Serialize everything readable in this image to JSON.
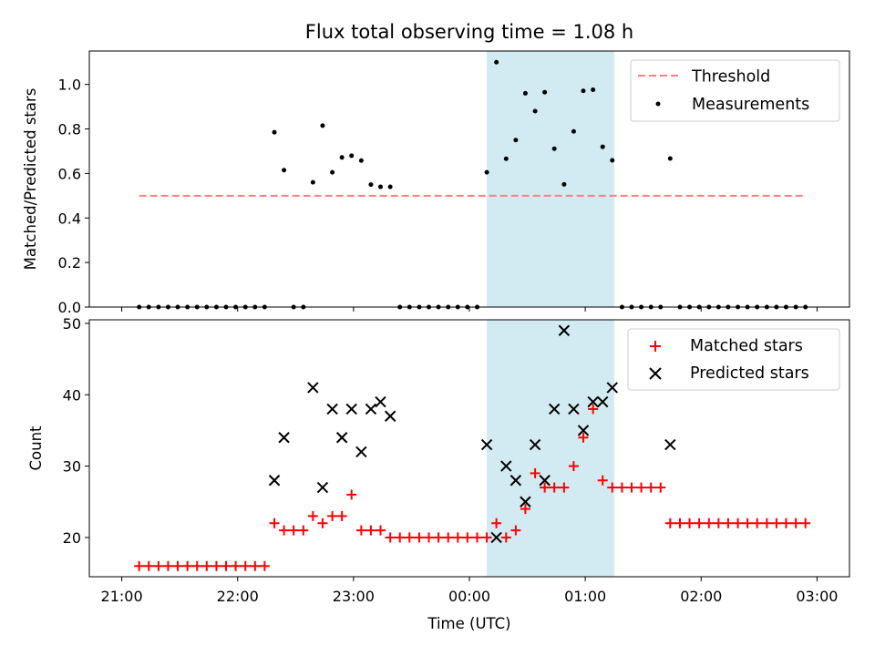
{
  "chart_data": [
    {
      "type": "scatter",
      "title": "Flux total observing time = 1.08 h",
      "xlabel": "",
      "ylabel": "Matched/Predicted stars",
      "ylim": [
        0,
        1.15
      ],
      "yticks": [
        "0.0",
        "0.2",
        "0.4",
        "0.6",
        "0.8",
        "1.0"
      ],
      "x_unit": "hours after 21:00 UTC",
      "xlim": [
        -0.28,
        6.28
      ],
      "shaded_interval": [
        3.15,
        4.25
      ],
      "shade_color": "#add8e6",
      "legend_placement": "upper right",
      "threshold": {
        "name": "Threshold",
        "value": 0.5,
        "x_range": [
          0.15,
          5.9
        ],
        "color": "#ff7f7f"
      },
      "series": [
        {
          "name": "Measurements",
          "color": "#000000",
          "x": [
            0.15,
            0.233,
            0.317,
            0.4,
            0.483,
            0.567,
            0.65,
            0.733,
            0.817,
            0.9,
            0.983,
            1.067,
            1.15,
            1.233,
            1.317,
            1.4,
            1.483,
            1.567,
            1.65,
            1.733,
            1.817,
            1.9,
            1.983,
            2.067,
            2.15,
            2.233,
            2.317,
            2.4,
            2.483,
            2.567,
            2.65,
            2.733,
            2.817,
            2.9,
            2.983,
            3.067,
            3.15,
            3.233,
            3.317,
            3.4,
            3.483,
            3.567,
            3.65,
            3.733,
            3.817,
            3.9,
            3.983,
            4.067,
            4.15,
            4.233,
            4.317,
            4.4,
            4.483,
            4.567,
            4.65,
            4.733,
            4.817,
            4.9,
            4.983,
            5.067,
            5.15,
            5.233,
            5.317,
            5.4,
            5.483,
            5.567,
            5.65,
            5.733,
            5.817,
            5.9
          ],
          "y": [
            0,
            0,
            0,
            0,
            0,
            0,
            0,
            0,
            0,
            0,
            0,
            0,
            0,
            0,
            0.785,
            0.615,
            0,
            0,
            0.56,
            0.815,
            0.605,
            0.672,
            0.68,
            0.658,
            0.55,
            0.54,
            0.54,
            0,
            0,
            0,
            0,
            0,
            0,
            0,
            0,
            0,
            0.605,
            1.1,
            0.666,
            0.75,
            0.96,
            0.88,
            0.965,
            0.711,
            0.551,
            0.789,
            0.971,
            0.976,
            0.72,
            0.659,
            0,
            0,
            0,
            0,
            0,
            0.667,
            0,
            0,
            0,
            0,
            0,
            0,
            0,
            0,
            0,
            0,
            0,
            0,
            0,
            0
          ]
        }
      ]
    },
    {
      "type": "scatter",
      "title": "",
      "xlabel": "Time (UTC)",
      "ylabel": "Count",
      "ylim": [
        14.5,
        50.5
      ],
      "yticks": [
        "20",
        "30",
        "40",
        "50"
      ],
      "x_unit": "hours after 21:00 UTC",
      "xlim": [
        -0.28,
        6.28
      ],
      "xtick_values": [
        0,
        1,
        2,
        3,
        4,
        5,
        6
      ],
      "xticks": [
        "21:00",
        "22:00",
        "23:00",
        "00:00",
        "01:00",
        "02:00",
        "03:00"
      ],
      "shaded_interval": [
        3.15,
        4.25
      ],
      "shade_color": "#add8e6",
      "legend_placement": "upper right",
      "series": [
        {
          "name": "Matched stars",
          "marker": "plus",
          "color": "#ff0000",
          "x": [
            0.15,
            0.233,
            0.317,
            0.4,
            0.483,
            0.567,
            0.65,
            0.733,
            0.817,
            0.9,
            0.983,
            1.067,
            1.15,
            1.233,
            1.317,
            1.4,
            1.483,
            1.567,
            1.65,
            1.733,
            1.817,
            1.9,
            1.983,
            2.067,
            2.15,
            2.233,
            2.317,
            2.4,
            2.483,
            2.567,
            2.65,
            2.733,
            2.817,
            2.9,
            2.983,
            3.067,
            3.15,
            3.233,
            3.317,
            3.4,
            3.483,
            3.567,
            3.65,
            3.733,
            3.817,
            3.9,
            3.983,
            4.067,
            4.15,
            4.233,
            4.317,
            4.4,
            4.483,
            4.567,
            4.65,
            4.733,
            4.817,
            4.9,
            4.983,
            5.067,
            5.15,
            5.233,
            5.317,
            5.4,
            5.483,
            5.567,
            5.65,
            5.733,
            5.817,
            5.9
          ],
          "y": [
            16,
            16,
            16,
            16,
            16,
            16,
            16,
            16,
            16,
            16,
            16,
            16,
            16,
            16,
            22,
            21,
            21,
            21,
            23,
            22,
            23,
            23,
            26,
            21,
            21,
            21,
            20,
            20,
            20,
            20,
            20,
            20,
            20,
            20,
            20,
            20,
            20,
            22,
            20,
            21,
            24,
            29,
            27,
            27,
            27,
            30,
            34,
            38,
            28,
            27,
            27,
            27,
            27,
            27,
            27,
            22,
            22,
            22,
            22,
            22,
            22,
            22,
            22,
            22,
            22,
            22,
            22,
            22,
            22,
            22
          ]
        },
        {
          "name": "Predicted stars",
          "marker": "x",
          "color": "#000000",
          "x": [
            1.317,
            1.4,
            1.65,
            1.733,
            1.817,
            1.9,
            1.983,
            2.067,
            2.15,
            2.233,
            2.317,
            3.15,
            3.233,
            3.317,
            3.4,
            3.483,
            3.567,
            3.65,
            3.733,
            3.817,
            3.9,
            3.983,
            4.067,
            4.15,
            4.233,
            4.733
          ],
          "y": [
            28,
            34,
            41,
            27,
            38,
            34,
            38,
            32,
            38,
            39,
            37,
            33,
            20,
            30,
            28,
            25,
            33,
            28,
            38,
            49,
            38,
            35,
            39,
            39,
            41,
            33
          ]
        }
      ]
    }
  ]
}
